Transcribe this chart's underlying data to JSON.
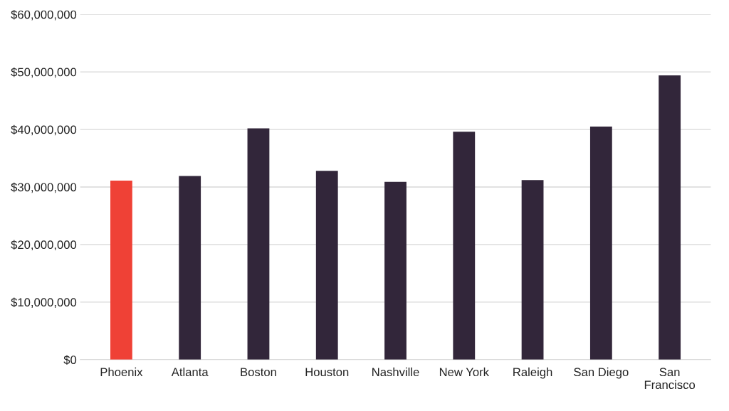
{
  "chart_data": {
    "type": "bar",
    "categories": [
      "Phoenix",
      "Atlanta",
      "Boston",
      "Houston",
      "Nashville",
      "New York",
      "Raleigh",
      "San Diego",
      "San\nFrancisco"
    ],
    "values": [
      31100000,
      31900000,
      40200000,
      32800000,
      30900000,
      39600000,
      31200000,
      40500000,
      49400000
    ],
    "colors": [
      "#ef4136",
      "#32263a",
      "#32263a",
      "#32263a",
      "#32263a",
      "#32263a",
      "#32263a",
      "#32263a",
      "#32263a"
    ],
    "ylim": [
      0,
      60000000
    ],
    "yticks": [
      {
        "value": 0,
        "label": "$0"
      },
      {
        "value": 10000000,
        "label": "$10,000,000"
      },
      {
        "value": 20000000,
        "label": "$20,000,000"
      },
      {
        "value": 30000000,
        "label": "$30,000,000"
      },
      {
        "value": 40000000,
        "label": "$40,000,000"
      },
      {
        "value": 50000000,
        "label": "$50,000,000"
      },
      {
        "value": 60000000,
        "label": "$60,000,000"
      }
    ],
    "grid": "y",
    "legend": false
  }
}
